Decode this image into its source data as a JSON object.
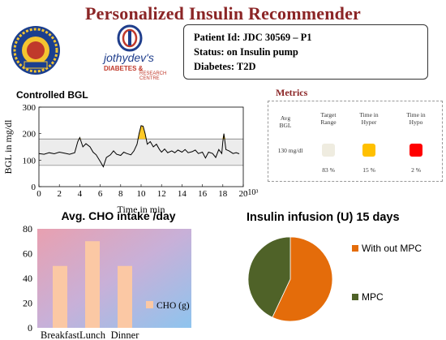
{
  "page": {
    "title": "Personalized Insulin Recommender"
  },
  "logos": {
    "right_name": "jothydev's",
    "right_sub1": "DIABETES &",
    "right_sub2": "RESEARCH CENTRE"
  },
  "patient": {
    "id_line": "Patient Id: JDC 30569 – P1",
    "status_line": "Status: on Insulin pump",
    "diabetes_line": "Diabetes: T2D"
  },
  "bgl": {
    "title": "Controlled BGL",
    "xlabel": "Time in min",
    "ylabel": "BGL in mg/dl",
    "x_multiplier": "·10³"
  },
  "metrics": {
    "title": "Metrics",
    "avg_label_1": "Avg",
    "avg_label_2": "BGL",
    "avg_value": "130 mg/dl",
    "target_label_1": "Target",
    "target_label_2": "Range",
    "target_value": "83 %",
    "hyper_label_1": "Time in",
    "hyper_label_2": "Hyper",
    "hyper_value": "15 %",
    "hypo_label_1": "Time in",
    "hypo_label_2": "Hypo",
    "hypo_value": "2 %",
    "colors": {
      "target": "#efece0",
      "hyper": "#ffc000",
      "hypo": "#ff0000"
    }
  },
  "chart_data": [
    {
      "type": "line",
      "title": "Controlled BGL",
      "xlabel": "Time in min",
      "ylabel": "BGL in mg/dl",
      "xlim": [
        0,
        20
      ],
      "ylim": [
        0,
        300
      ],
      "xticks": [
        0,
        2,
        4,
        6,
        8,
        10,
        12,
        14,
        16,
        18,
        20
      ],
      "yticks": [
        0,
        100,
        200,
        300
      ],
      "target_range": [
        80,
        180
      ],
      "x": [
        0,
        0.5,
        1,
        1.5,
        2,
        2.5,
        3,
        3.5,
        3.8,
        4,
        4.3,
        4.6,
        5,
        5.3,
        5.6,
        6,
        6.3,
        6.6,
        7,
        7.3,
        7.6,
        8,
        8.3,
        8.6,
        9,
        9.3,
        9.6,
        9.8,
        10,
        10.2,
        10.4,
        10.6,
        10.9,
        11.2,
        11.5,
        11.8,
        12,
        12.3,
        12.6,
        13,
        13.3,
        13.6,
        14,
        14.3,
        14.6,
        15,
        15.3,
        15.6,
        16,
        16.3,
        16.6,
        17,
        17.3,
        17.6,
        17.9,
        18,
        18.1,
        18.3,
        18.6,
        19,
        19.3,
        19.6
      ],
      "y": [
        125,
        122,
        128,
        124,
        130,
        126,
        122,
        128,
        170,
        185,
        150,
        162,
        150,
        130,
        120,
        95,
        75,
        110,
        120,
        135,
        122,
        118,
        130,
        125,
        120,
        135,
        160,
        200,
        230,
        228,
        200,
        160,
        170,
        150,
        160,
        140,
        130,
        142,
        128,
        135,
        128,
        138,
        130,
        140,
        128,
        132,
        138,
        125,
        130,
        108,
        130,
        125,
        110,
        140,
        125,
        170,
        200,
        140,
        135,
        125,
        128,
        124
      ],
      "grid": false
    },
    {
      "type": "bar",
      "title": "Avg. CHO intake /day",
      "categories": [
        "Breakfast",
        "Lunch",
        "Dinner"
      ],
      "series": [
        {
          "name": "CHO (g)",
          "values": [
            50,
            70,
            50
          ]
        }
      ],
      "ylim": [
        0,
        80
      ],
      "yticks": [
        0,
        20,
        40,
        60,
        80
      ],
      "legend": "right"
    },
    {
      "type": "pie",
      "title": "Insulin infusion (U) 15 days",
      "labels": [
        "With out MPC",
        "MPC"
      ],
      "values": [
        57,
        43
      ],
      "colors": [
        "#e46c0a",
        "#4f6228"
      ],
      "legend": "right"
    }
  ]
}
